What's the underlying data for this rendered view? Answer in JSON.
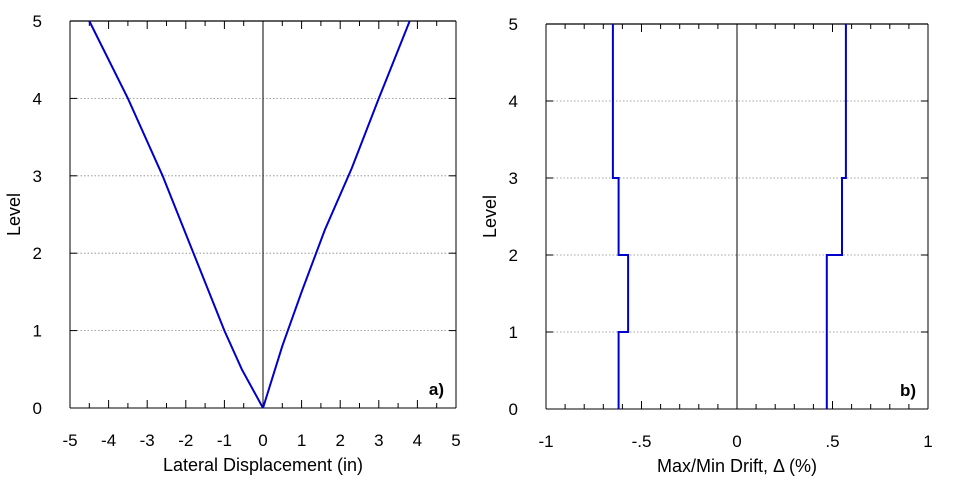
{
  "chart_data": [
    {
      "type": "line",
      "panel_label": "a)",
      "xlabel": "Lateral Displacement (in)",
      "ylabel": "Level",
      "xlim": [
        -5,
        5
      ],
      "ylim": [
        0,
        5
      ],
      "x_ticks": [
        -5,
        -4,
        -3,
        -2,
        -1,
        0,
        1,
        2,
        3,
        4,
        5
      ],
      "y_ticks": [
        0,
        1,
        2,
        3,
        4,
        5
      ],
      "grid": "horizontal dotted",
      "series_color": "#0000cc",
      "series": [
        {
          "points": [
            [
              -4.5,
              5
            ],
            [
              -3.5,
              4
            ],
            [
              -2.6,
              3
            ],
            [
              -1.8,
              2
            ],
            [
              -1.0,
              1
            ],
            [
              -0.55,
              0.5
            ],
            [
              0,
              0
            ]
          ]
        },
        {
          "points": [
            [
              0,
              0
            ],
            [
              0.5,
              0.8
            ],
            [
              1.0,
              1.5
            ],
            [
              1.6,
              2.3
            ],
            [
              2.3,
              3.1
            ],
            [
              3.0,
              4.0
            ],
            [
              3.8,
              5
            ]
          ]
        }
      ]
    },
    {
      "type": "line",
      "panel_label": "b)",
      "xlabel": "Max/Min Drift, Δ (%)",
      "ylabel": "Level",
      "xlim": [
        -1,
        1
      ],
      "ylim": [
        0,
        5
      ],
      "x_ticks": [
        -1,
        -0.5,
        0,
        0.5,
        1
      ],
      "y_ticks": [
        0,
        1,
        2,
        3,
        4,
        5
      ],
      "grid": "horizontal dotted",
      "series_color": "#0000cc",
      "series": [
        {
          "points": [
            [
              -0.62,
              0
            ],
            [
              -0.62,
              1
            ],
            [
              -0.57,
              1
            ],
            [
              -0.57,
              2
            ],
            [
              -0.62,
              2
            ],
            [
              -0.62,
              3
            ],
            [
              -0.65,
              3
            ],
            [
              -0.65,
              5
            ]
          ]
        },
        {
          "points": [
            [
              0.47,
              0
            ],
            [
              0.47,
              2
            ],
            [
              0.55,
              2
            ],
            [
              0.55,
              3
            ],
            [
              0.57,
              3
            ],
            [
              0.57,
              5
            ]
          ]
        }
      ]
    }
  ]
}
